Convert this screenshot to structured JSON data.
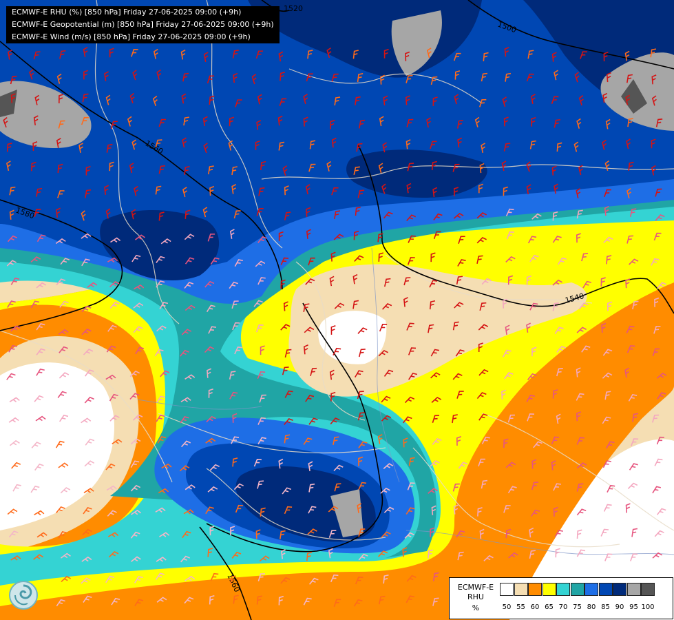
{
  "header": {
    "lines": [
      "ECMWF-E RHU (%) [850 hPa] Friday 27-06-2025 09:00 (+9h)",
      "ECMWF-E Geopotential (m) [850 hPa] Friday 27-06-2025 09:00 (+9h)",
      "ECMWF-E Wind (m/s) [850 hPa] Friday 27-06-2025 09:00 (+9h)"
    ]
  },
  "contour_labels": [
    "1520",
    "1500",
    "1560",
    "1580",
    "1540",
    "1560"
  ],
  "legend": {
    "title_line1": "ECMWF-E",
    "title_line2": "RHU",
    "unit": "%",
    "ticks": [
      "50",
      "55",
      "60",
      "65",
      "70",
      "75",
      "80",
      "85",
      "90",
      "95",
      "100"
    ],
    "colors": [
      "#ffffff",
      "#f5deb3",
      "#ff8c00",
      "#ffff00",
      "#34d3d3",
      "#20a5a5",
      "#1e6ee6",
      "#0047b3",
      "#002a7a",
      "#a6a6a6",
      "#555555"
    ]
  },
  "logo": {
    "icon": "ogimet-swirl-logo"
  }
}
